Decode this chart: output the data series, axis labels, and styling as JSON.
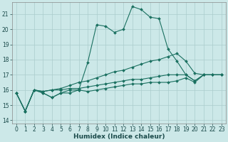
{
  "xlabel": "Humidex (Indice chaleur)",
  "background_color": "#cce8e8",
  "grid_color": "#aacccc",
  "line_color": "#1a7060",
  "xlim": [
    -0.5,
    23.5
  ],
  "ylim": [
    13.8,
    21.8
  ],
  "yticks": [
    14,
    15,
    16,
    17,
    18,
    19,
    20,
    21
  ],
  "xticks": [
    0,
    1,
    2,
    3,
    4,
    5,
    6,
    7,
    8,
    9,
    10,
    11,
    12,
    13,
    14,
    15,
    16,
    17,
    18,
    19,
    20,
    21,
    22,
    23
  ],
  "series": [
    {
      "x": [
        0,
        1,
        2,
        3,
        4,
        5,
        6,
        7,
        8,
        9,
        10,
        11,
        12,
        13,
        14,
        15,
        16,
        17,
        18,
        19,
        20,
        21
      ],
      "y": [
        15.8,
        14.6,
        16.0,
        15.8,
        15.5,
        15.8,
        16.0,
        16.0,
        17.8,
        20.3,
        20.2,
        19.8,
        20.0,
        21.5,
        21.3,
        20.8,
        20.7,
        18.7,
        17.9,
        17.0,
        16.6,
        17.0
      ]
    },
    {
      "x": [
        0,
        1,
        2,
        3,
        4,
        5,
        6,
        7,
        8,
        9,
        10,
        11,
        12,
        13,
        14,
        15,
        16,
        17,
        18,
        19,
        20,
        21,
        22,
        23
      ],
      "y": [
        15.8,
        14.6,
        16.0,
        15.9,
        16.0,
        16.1,
        16.3,
        16.5,
        16.6,
        16.8,
        17.0,
        17.2,
        17.3,
        17.5,
        17.7,
        17.9,
        18.0,
        18.2,
        18.4,
        17.9,
        17.1,
        17.0,
        17.0,
        17.0
      ]
    },
    {
      "x": [
        0,
        1,
        2,
        3,
        4,
        5,
        6,
        7,
        8,
        9,
        10,
        11,
        12,
        13,
        14,
        15,
        16,
        17,
        18,
        19,
        20,
        21,
        22,
        23
      ],
      "y": [
        15.8,
        14.6,
        16.0,
        15.9,
        16.0,
        16.0,
        16.1,
        16.1,
        16.2,
        16.3,
        16.4,
        16.5,
        16.6,
        16.7,
        16.7,
        16.8,
        16.9,
        17.0,
        17.0,
        17.0,
        16.6,
        17.0,
        17.0,
        17.0
      ]
    },
    {
      "x": [
        0,
        1,
        2,
        3,
        4,
        5,
        6,
        7,
        8,
        9,
        10,
        11,
        12,
        13,
        14,
        15,
        16,
        17,
        18,
        19,
        20,
        21,
        22,
        23
      ],
      "y": [
        15.8,
        14.6,
        16.0,
        15.8,
        15.5,
        15.8,
        15.8,
        16.0,
        15.9,
        16.0,
        16.1,
        16.2,
        16.3,
        16.4,
        16.4,
        16.5,
        16.5,
        16.5,
        16.6,
        16.8,
        16.5,
        17.0,
        17.0,
        17.0
      ]
    }
  ]
}
